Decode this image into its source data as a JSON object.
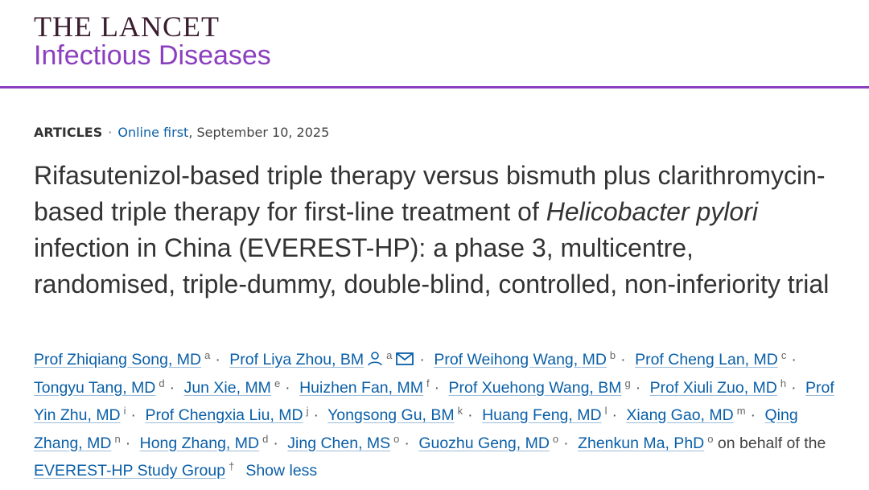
{
  "header": {
    "journal": "THE LANCET",
    "subtitle": "Infectious Diseases"
  },
  "article": {
    "section": "ARTICLES",
    "meta_separator": "·",
    "status": "Online first",
    "dateline": ", September 10, 2025",
    "title": [
      {
        "text": "Rifasutenizol-based triple therapy versus bismuth plus clarithromycin-based triple therapy for first-line treatment of ",
        "italic": false
      },
      {
        "text": "Helicobacter pylori",
        "italic": true
      },
      {
        "text": " infection in China (EVEREST-HP): a phase 3, multicentre, randomised, triple-dummy, double-blind, controlled, non-inferiority trial",
        "italic": false
      }
    ],
    "author_separator": "·",
    "authors": [
      {
        "name": "Prof Zhiqiang Song, MD",
        "affiliation": "a"
      },
      {
        "name": "Prof Liya Zhou, BM",
        "affiliation": "a",
        "corresponding": true
      },
      {
        "name": "Prof Weihong Wang, MD",
        "affiliation": "b"
      },
      {
        "name": "Prof Cheng Lan, MD",
        "affiliation": "c"
      },
      {
        "name": "Tongyu Tang, MD",
        "affiliation": "d"
      },
      {
        "name": "Jun Xie, MM",
        "affiliation": "e"
      },
      {
        "name": "Huizhen Fan, MM",
        "affiliation": "f"
      },
      {
        "name": "Prof Xuehong Wang, BM",
        "affiliation": "g"
      },
      {
        "name": "Prof Xiuli Zuo, MD",
        "affiliation": "h"
      },
      {
        "name": "Prof Yin Zhu, MD",
        "affiliation": "i"
      },
      {
        "name": "Prof Chengxia Liu, MD",
        "affiliation": "j"
      },
      {
        "name": "Yongsong Gu, BM",
        "affiliation": "k"
      },
      {
        "name": "Huang Feng, MD",
        "affiliation": "l"
      },
      {
        "name": "Xiang Gao, MD",
        "affiliation": "m"
      },
      {
        "name": "Qing Zhang, MD",
        "affiliation": "n"
      },
      {
        "name": "Hong Zhang, MD",
        "affiliation": "d"
      },
      {
        "name": "Jing Chen, MS",
        "affiliation": "o"
      },
      {
        "name": "Guozhu Geng, MD",
        "affiliation": "o"
      },
      {
        "name": "Zhenkun Ma, PhD",
        "affiliation": "o"
      }
    ],
    "behalf_text": "on behalf of the",
    "group": {
      "name": "EVEREST-HP Study Group",
      "affiliation": "†"
    },
    "show_less": "Show less"
  }
}
